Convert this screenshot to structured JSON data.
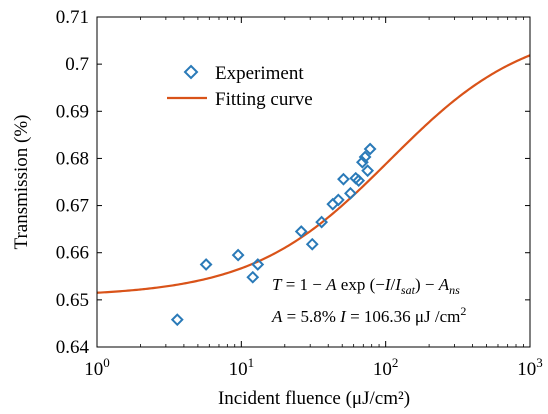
{
  "chart_data": {
    "type": "scatter",
    "xscale": "log",
    "xlim": [
      1,
      1000
    ],
    "ylim": [
      0.64,
      0.71
    ],
    "xticks": [
      1,
      10,
      100,
      1000
    ],
    "xtick_labels": [
      {
        "base": "10",
        "exp": "0"
      },
      {
        "base": "10",
        "exp": "1"
      },
      {
        "base": "10",
        "exp": "2"
      },
      {
        "base": "10",
        "exp": "3"
      }
    ],
    "yticks": [
      0.64,
      0.65,
      0.66,
      0.67,
      0.68,
      0.69,
      0.7,
      0.71
    ],
    "ytick_labels": [
      "0.64",
      "0.65",
      "0.66",
      "0.67",
      "0.68",
      "0.69",
      "0.7",
      "0.71"
    ],
    "xlabel": "Incident fluence (μJ/cm²)",
    "ylabel": "Transmission (%)",
    "legend_position": "top-left",
    "grid": false,
    "series": [
      {
        "name": "Experiment",
        "kind": "markers",
        "marker": "diamond",
        "color": "#2a7ab8",
        "x": [
          3.6,
          5.7,
          9.5,
          12,
          13,
          26,
          31,
          36,
          43,
          47,
          51,
          57,
          62,
          65,
          69,
          72,
          75,
          78
        ],
        "y": [
          0.6458,
          0.6575,
          0.6595,
          0.6548,
          0.6575,
          0.6645,
          0.6618,
          0.6665,
          0.6703,
          0.6712,
          0.6756,
          0.6726,
          0.6758,
          0.6753,
          0.6792,
          0.6803,
          0.6774,
          0.682
        ]
      },
      {
        "name": "Fitting curve",
        "kind": "line",
        "color": "#d95319",
        "model": "logistic_log10",
        "params": {
          "low": 0.6507,
          "high": 0.7085,
          "center": 106.36,
          "steepness": 2.1
        }
      }
    ],
    "annotation": {
      "line1": {
        "lead": "T",
        "eq1": " = 1 − ",
        "A": "A",
        "exp": " exp (−",
        "I": "I",
        "slash": "/",
        "Isat": "I",
        "sat": "sat",
        "close": ") − ",
        "Ans": "A",
        "ns": "ns"
      },
      "line2": {
        "A": "A",
        "aval": " = 5.8%  ",
        "I": "I",
        "ival": " = 106.36 μJ /cm",
        "sup": "2"
      }
    }
  }
}
